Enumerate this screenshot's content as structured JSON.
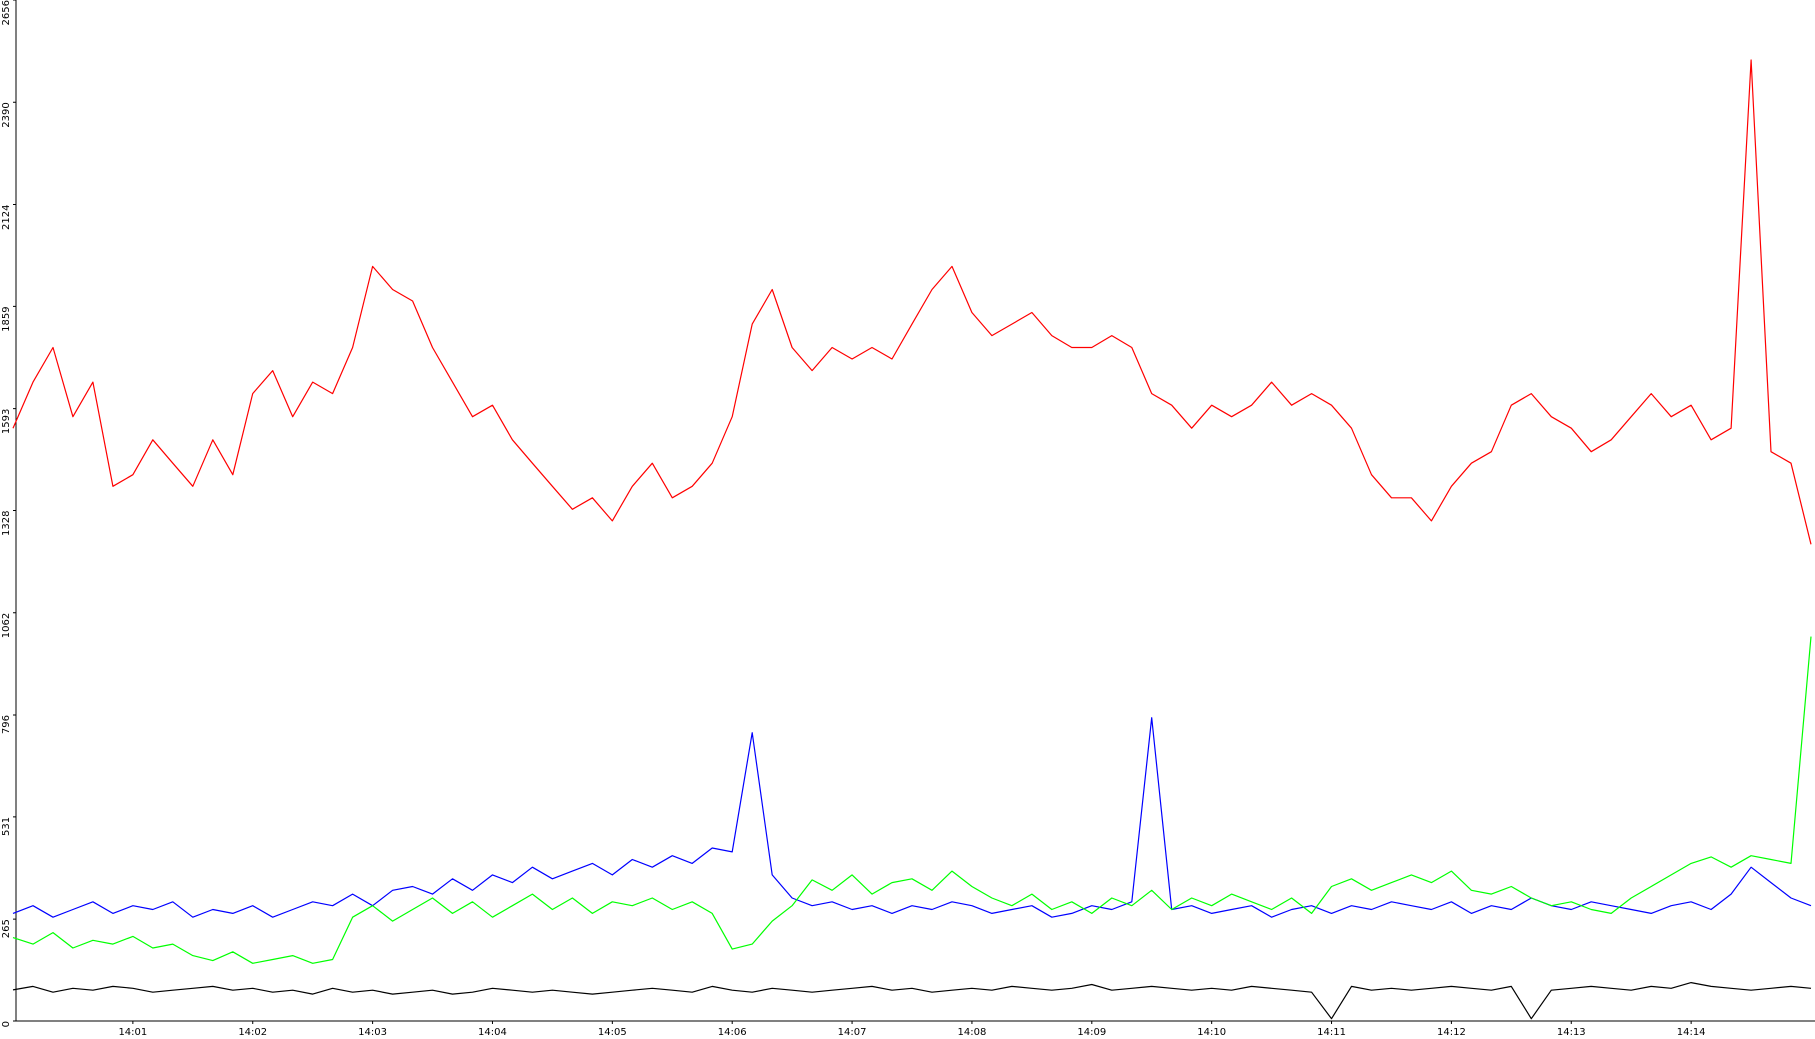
{
  "chart_data": {
    "type": "line",
    "categories": [
      null,
      null,
      null,
      null,
      null,
      null,
      "14:01",
      null,
      null,
      null,
      null,
      null,
      "14:02",
      null,
      null,
      null,
      null,
      null,
      "14:03",
      null,
      null,
      null,
      null,
      null,
      "14:04",
      null,
      null,
      null,
      null,
      null,
      "14:05",
      null,
      null,
      null,
      null,
      null,
      "14:06",
      null,
      null,
      null,
      null,
      null,
      "14:07",
      null,
      null,
      null,
      null,
      null,
      "14:08",
      null,
      null,
      null,
      null,
      null,
      "14:09",
      null,
      null,
      null,
      null,
      null,
      "14:10",
      null,
      null,
      null,
      null,
      null,
      "14:11",
      null,
      null,
      null,
      null,
      null,
      "14:12",
      null,
      null,
      null,
      null,
      null,
      "14:13",
      null,
      null,
      null,
      null,
      null,
      "14:14",
      null,
      null,
      null,
      null,
      null,
      null
    ],
    "ylim": [
      0,
      2656
    ],
    "yticks": [
      0,
      265,
      531,
      796,
      1062,
      1328,
      1593,
      1859,
      2124,
      2390,
      2656
    ],
    "grid": false,
    "series": [
      {
        "color": "#ff0000",
        "values": [
          1542,
          1662,
          1752,
          1572,
          1662,
          1391,
          1421,
          1512,
          1451,
          1391,
          1512,
          1421,
          1632,
          1692,
          1572,
          1662,
          1632,
          1752,
          1963,
          1903,
          1873,
          1752,
          1662,
          1572,
          1602,
          1512,
          1451,
          1391,
          1331,
          1361,
          1301,
          1391,
          1451,
          1361,
          1391,
          1451,
          1572,
          1813,
          1903,
          1752,
          1692,
          1752,
          1722,
          1752,
          1722,
          1813,
          1903,
          1963,
          1843,
          1783,
          1813,
          1843,
          1783,
          1752,
          1752,
          1783,
          1752,
          1632,
          1602,
          1542,
          1602,
          1572,
          1602,
          1662,
          1602,
          1632,
          1602,
          1542,
          1421,
          1361,
          1361,
          1301,
          1391,
          1451,
          1481,
          1602,
          1632,
          1572,
          1542,
          1481,
          1512,
          1572,
          1632,
          1572,
          1602,
          1512,
          1542,
          2500,
          1481,
          1451,
          1240
        ]
      },
      {
        "color": "#0000ff",
        "values": [
          280,
          300,
          270,
          290,
          310,
          280,
          300,
          290,
          310,
          270,
          290,
          280,
          300,
          270,
          290,
          310,
          300,
          330,
          300,
          340,
          350,
          330,
          370,
          340,
          380,
          360,
          400,
          370,
          390,
          410,
          380,
          420,
          400,
          430,
          410,
          450,
          440,
          750,
          380,
          320,
          300,
          310,
          290,
          300,
          280,
          300,
          290,
          310,
          300,
          280,
          290,
          300,
          270,
          280,
          300,
          290,
          310,
          789,
          290,
          300,
          280,
          290,
          300,
          270,
          290,
          300,
          280,
          300,
          290,
          310,
          300,
          290,
          310,
          280,
          300,
          290,
          320,
          300,
          290,
          310,
          300,
          290,
          280,
          300,
          310,
          290,
          330,
          400,
          360,
          320,
          300
        ]
      },
      {
        "color": "#00ff00",
        "values": [
          217,
          200,
          230,
          190,
          210,
          200,
          220,
          190,
          200,
          170,
          157,
          180,
          150,
          160,
          170,
          150,
          160,
          270,
          300,
          260,
          290,
          320,
          280,
          310,
          270,
          300,
          330,
          290,
          320,
          280,
          310,
          300,
          320,
          290,
          310,
          280,
          187,
          200,
          260,
          300,
          367,
          340,
          380,
          330,
          360,
          370,
          340,
          390,
          350,
          320,
          300,
          330,
          290,
          310,
          280,
          320,
          300,
          340,
          290,
          320,
          300,
          330,
          310,
          290,
          320,
          280,
          350,
          370,
          340,
          360,
          380,
          360,
          390,
          340,
          330,
          350,
          320,
          300,
          310,
          290,
          280,
          320,
          350,
          380,
          410,
          427,
          400,
          430,
          420,
          410,
          1000
        ]
      },
      {
        "color": "#000000",
        "values": [
          81,
          90,
          75,
          85,
          80,
          90,
          85,
          75,
          80,
          85,
          90,
          80,
          85,
          75,
          80,
          70,
          85,
          75,
          80,
          70,
          75,
          80,
          70,
          75,
          85,
          80,
          75,
          80,
          75,
          70,
          75,
          80,
          85,
          80,
          75,
          90,
          80,
          75,
          85,
          80,
          75,
          80,
          85,
          90,
          80,
          85,
          75,
          80,
          85,
          80,
          90,
          85,
          80,
          85,
          95,
          80,
          85,
          90,
          85,
          80,
          85,
          80,
          90,
          85,
          80,
          75,
          6,
          90,
          80,
          85,
          80,
          85,
          90,
          85,
          80,
          90,
          6,
          80,
          85,
          90,
          85,
          80,
          90,
          85,
          100,
          90,
          85,
          80,
          85,
          90,
          85
        ]
      }
    ]
  }
}
